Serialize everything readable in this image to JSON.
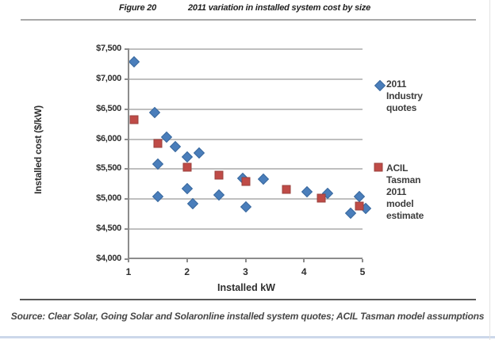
{
  "header": {
    "figure_label": "Figure 20",
    "figure_title": "2011 variation in installed system cost by size"
  },
  "source_line": "Source: Clear Solar, Going Solar and Solaronline installed system quotes; ACIL Tasman model assumptions",
  "chart_data": {
    "type": "scatter",
    "title": "",
    "xlabel": "Installed kW",
    "ylabel": "Installed cost ($/kW)",
    "xlim": [
      1,
      5
    ],
    "ylim": [
      4000,
      7500
    ],
    "x_ticks": [
      1,
      2,
      3,
      4,
      5
    ],
    "y_ticks": [
      4000,
      4500,
      5000,
      5500,
      6000,
      6500,
      7000,
      7500
    ],
    "y_tick_labels": [
      "$4,000",
      "$4,500",
      "$5,000",
      "$5,500",
      "$6,000",
      "$6,500",
      "$7,000",
      "$7,500"
    ],
    "grid": "horizontal",
    "legend_position": "right",
    "series": [
      {
        "name": "2011 Industry quotes",
        "marker": "diamond",
        "color": "#4a7ebb",
        "points": [
          [
            1.1,
            7290
          ],
          [
            1.45,
            6450
          ],
          [
            1.5,
            5580
          ],
          [
            1.5,
            5050
          ],
          [
            1.65,
            6040
          ],
          [
            1.8,
            5880
          ],
          [
            2.0,
            5710
          ],
          [
            2.0,
            5170
          ],
          [
            2.1,
            4930
          ],
          [
            2.2,
            5770
          ],
          [
            2.55,
            5070
          ],
          [
            2.95,
            5350
          ],
          [
            3.0,
            4870
          ],
          [
            3.3,
            5330
          ],
          [
            4.05,
            5120
          ],
          [
            4.4,
            5100
          ],
          [
            4.8,
            4770
          ],
          [
            4.95,
            5040
          ],
          [
            5.05,
            4850
          ]
        ]
      },
      {
        "name": "ACIL Tasman 2011 model estimate",
        "marker": "square",
        "color": "#bf4b47",
        "points": [
          [
            1.1,
            6330
          ],
          [
            1.5,
            5930
          ],
          [
            2.0,
            5530
          ],
          [
            2.55,
            5400
          ],
          [
            3.0,
            5300
          ],
          [
            3.7,
            5160
          ],
          [
            4.3,
            5020
          ],
          [
            4.95,
            4890
          ]
        ]
      }
    ]
  }
}
